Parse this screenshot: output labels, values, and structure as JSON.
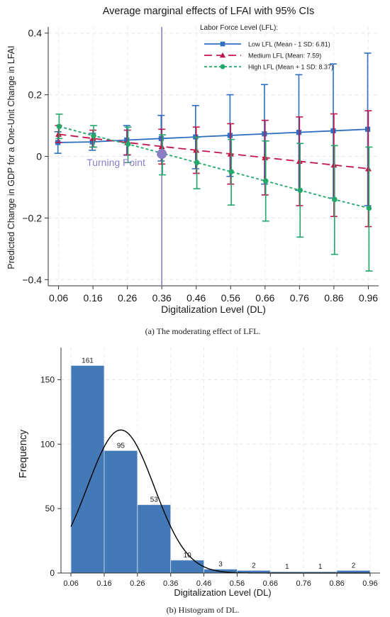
{
  "chart_data": [
    {
      "type": "line",
      "title": "Average marginal effects of LFAI with 95% CIs",
      "xlabel": "Digitalization Level (DL)",
      "ylabel": "Predicted Change in GDP for a One-Unit Change in LFAI",
      "caption": "(a) The moderating effect of LFL.",
      "x": [
        0.06,
        0.16,
        0.26,
        0.36,
        0.46,
        0.56,
        0.66,
        0.76,
        0.86,
        0.96
      ],
      "x_ticks": [
        "0.06",
        "0.16",
        "0.26",
        "0.36",
        "0.46",
        "0.56",
        "0.66",
        "0.76",
        "0.86",
        "0.96"
      ],
      "ylim": [
        -0.42,
        0.42
      ],
      "y_ticks": [
        {
          "v": 0.4,
          "label": "0.4"
        },
        {
          "v": 0.2,
          "label": "0.2"
        },
        {
          "v": 0,
          "label": "0"
        },
        {
          "v": -0.2,
          "label": "−0.2"
        },
        {
          "v": -0.4,
          "label": "−0.4"
        }
      ],
      "grid": true,
      "legend_title": "Labor Force Level (LFL):",
      "legend_position": "top-right",
      "series": [
        {
          "name": "Low LFL (Mean - 1 SD: 6.81)",
          "color": "#2e6fbf",
          "marker": "square",
          "dash": "none",
          "values": [
            0.045,
            0.047,
            0.053,
            0.058,
            0.063,
            0.068,
            0.073,
            0.078,
            0.083,
            0.088
          ],
          "lower": [
            0.01,
            0.02,
            0.004,
            -0.015,
            -0.04,
            -0.065,
            -0.09,
            -0.11,
            -0.135,
            -0.16
          ],
          "upper": [
            0.08,
            0.075,
            0.1,
            0.133,
            0.165,
            0.2,
            0.233,
            0.265,
            0.3,
            0.335
          ]
        },
        {
          "name": "Medium LFL (Mean: 7.59)",
          "color": "#c4154a",
          "marker": "triangle",
          "dash": "long",
          "values": [
            0.072,
            0.058,
            0.045,
            0.032,
            0.02,
            0.008,
            -0.004,
            -0.016,
            -0.028,
            -0.04
          ],
          "lower": [
            0.045,
            0.03,
            0.005,
            -0.025,
            -0.055,
            -0.09,
            -0.125,
            -0.16,
            -0.195,
            -0.228
          ],
          "upper": [
            0.1,
            0.085,
            0.085,
            0.088,
            0.095,
            0.106,
            0.117,
            0.128,
            0.138,
            0.148
          ]
        },
        {
          "name": "High LFL (Mean + 1 SD: 8.37)",
          "color": "#22a86a",
          "marker": "circle",
          "dash": "short",
          "values": [
            0.097,
            0.067,
            0.04,
            0.01,
            -0.02,
            -0.05,
            -0.08,
            -0.11,
            -0.14,
            -0.168
          ],
          "lower": [
            0.058,
            0.03,
            -0.02,
            -0.06,
            -0.105,
            -0.158,
            -0.21,
            -0.262,
            -0.318,
            -0.372
          ],
          "upper": [
            0.137,
            0.1,
            0.095,
            0.07,
            0.062,
            0.055,
            0.05,
            0.042,
            0.035,
            0.03
          ]
        }
      ],
      "annotations": {
        "turning_point_label": "Turning Point",
        "turning_point_x": 0.36,
        "turning_point_y": 0.008,
        "vline_x": 0.36,
        "color": "#8b7ec4"
      }
    },
    {
      "type": "bar",
      "subtype": "histogram",
      "xlabel": "Digitalization Level (DL)",
      "ylabel": "Frequency",
      "caption": "(b) Histogram of DL.",
      "bin_edges": [
        0.06,
        0.16,
        0.26,
        0.36,
        0.46,
        0.56,
        0.66,
        0.76,
        0.86,
        0.96
      ],
      "values": [
        161,
        95,
        53,
        10,
        3,
        2,
        1,
        1,
        2
      ],
      "value_labels": [
        "161",
        "95",
        "53",
        "10",
        "3",
        "2",
        "1",
        "1",
        "2"
      ],
      "xlim": [
        0.03,
        0.99
      ],
      "x_ticks": [
        "0.06",
        "0.16",
        "0.26",
        "0.36",
        "0.46",
        "0.56",
        "0.66",
        "0.76",
        "0.86",
        "0.96"
      ],
      "ylim": [
        0,
        175
      ],
      "y_ticks": [
        {
          "v": 0,
          "label": "0"
        },
        {
          "v": 50,
          "label": "50"
        },
        {
          "v": 100,
          "label": "100"
        },
        {
          "v": 150,
          "label": "150"
        }
      ],
      "grid": true,
      "bar_color": "#4479b8",
      "normal_curve": {
        "mean": 0.21,
        "sd": 0.1,
        "peak": 111,
        "color": "#000000"
      }
    }
  ]
}
